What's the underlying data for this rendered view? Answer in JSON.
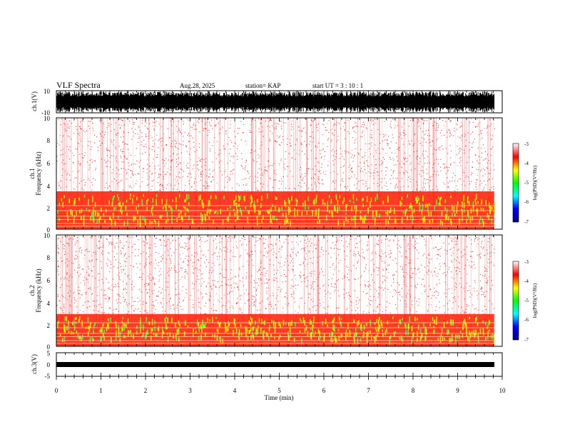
{
  "header": {
    "title": "VLF Spectra",
    "date": "Aug.28, 2025",
    "station": "station= KAP",
    "start": "start  UT =   3  : 10 : 1"
  },
  "chart_data": {
    "type": "heatmap",
    "title": "VLF Spectra",
    "x": {
      "label": "Time  (min)",
      "range": [
        0,
        10
      ],
      "ticks": [
        "0",
        "1",
        "2",
        "3",
        "4",
        "5",
        "6",
        "7",
        "8",
        "9",
        "10"
      ]
    },
    "panels": [
      {
        "id": "ch1_waveform",
        "ylabel": "ch.1(V)",
        "ylim": [
          -10,
          10
        ],
        "ticks": [
          "10",
          "-10"
        ]
      },
      {
        "id": "ch1_spectrum",
        "ylabel_1": "ch.1",
        "ylabel_2": "Frequency  (kHz)",
        "ylim": [
          0,
          10
        ],
        "ticks": [
          "0",
          "2",
          "4",
          "6",
          "8",
          "10"
        ],
        "colorbar": {
          "label": "log(PSD)(V²/Hz)",
          "range": [
            -7,
            -3
          ],
          "ticks": [
            "-3",
            "-4",
            "-5",
            "-6",
            "-7"
          ]
        }
      },
      {
        "id": "ch2_spectrum",
        "ylabel_1": "ch.2",
        "ylabel_2": "Frequency  (kHz)",
        "ylim": [
          0,
          10
        ],
        "ticks": [
          "0",
          "2",
          "4",
          "6",
          "8",
          "10"
        ],
        "colorbar": {
          "label": "log(PSD)(V²/Hz)",
          "range": [
            -7,
            -3
          ],
          "ticks": [
            "-3",
            "-4",
            "-5",
            "-6",
            "-7"
          ]
        }
      },
      {
        "id": "ch3_waveform",
        "ylabel": "ch.3(V)",
        "ylim": [
          -5,
          5
        ],
        "ticks": [
          "5",
          "0",
          "-5"
        ]
      }
    ],
    "data_end_min": 9.82,
    "colormap": [
      "#000080",
      "#0000ff",
      "#00ffff",
      "#00ff00",
      "#ffff00",
      "#ff0000",
      "#ffffff"
    ]
  }
}
